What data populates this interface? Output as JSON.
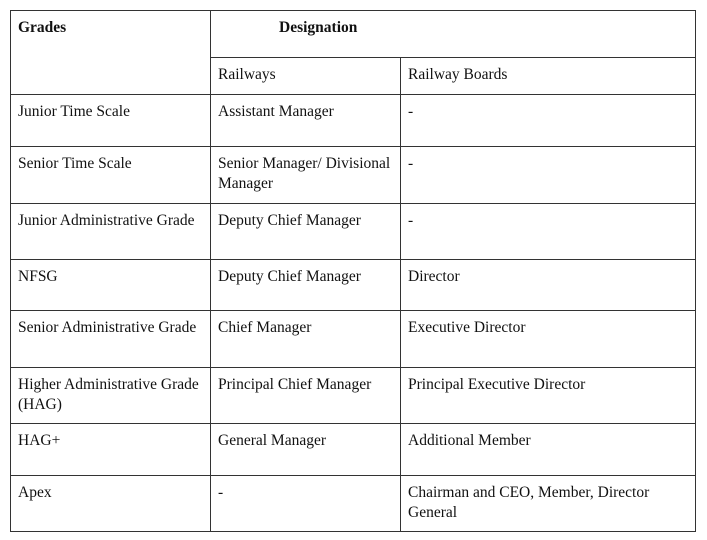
{
  "header": {
    "grades": "Grades",
    "designation": "Designation",
    "railways": "Railways",
    "railway_boards": "Railway Boards"
  },
  "rows": [
    {
      "grade": "Junior Time Scale",
      "railways": "Assistant Manager",
      "boards": "-"
    },
    {
      "grade": "Senior Time Scale",
      "railways": "Senior Manager/ Divisional Manager",
      "boards": "-"
    },
    {
      "grade": "Junior Administrative Grade",
      "railways": "Deputy Chief Manager",
      "boards": "-"
    },
    {
      "grade": "NFSG",
      "railways": "Deputy Chief Manager",
      "boards": "Director"
    },
    {
      "grade": "Senior Administrative Grade",
      "railways": "Chief Manager",
      "boards": "Executive Director"
    },
    {
      "grade": "Higher Administrative Grade (HAG)",
      "railways": "Principal Chief Manager",
      "boards": "Principal Executive Director"
    },
    {
      "grade": "HAG+",
      "railways": "General Manager",
      "boards": "Additional Member"
    },
    {
      "grade": "Apex",
      "railways": "-",
      "boards": "Chairman and CEO, Member, Director General"
    }
  ]
}
